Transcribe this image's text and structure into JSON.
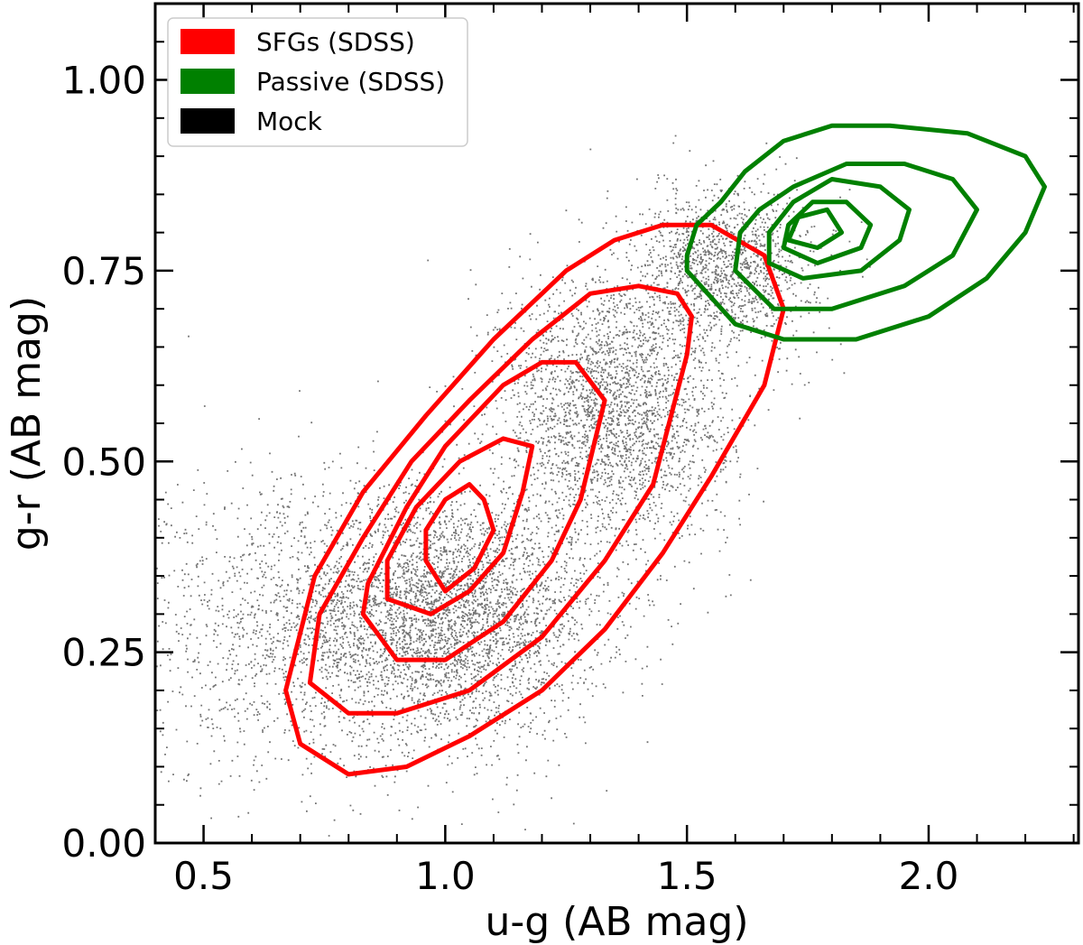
{
  "chart_data": {
    "type": "scatter",
    "xlabel": "u-g (AB mag)",
    "ylabel": "g-r (AB mag)",
    "xlim": [
      0.4,
      2.31
    ],
    "ylim": [
      0.0,
      1.1
    ],
    "x_ticks": [
      {
        "value": 0.5,
        "label": "0.5"
      },
      {
        "value": 1.0,
        "label": "1.0"
      },
      {
        "value": 1.5,
        "label": "1.5"
      },
      {
        "value": 2.0,
        "label": "2.0"
      }
    ],
    "x_minor_step": 0.1,
    "y_ticks": [
      {
        "value": 0.0,
        "label": "0.00"
      },
      {
        "value": 0.25,
        "label": "0.25"
      },
      {
        "value": 0.5,
        "label": "0.50"
      },
      {
        "value": 0.75,
        "label": "0.75"
      },
      {
        "value": 1.0,
        "label": "1.00"
      }
    ],
    "y_minor_step": 0.05,
    "grid": false,
    "legend": {
      "placement": "top-left",
      "entries": [
        {
          "label": "SFGs (SDSS)",
          "color": "#ff0000"
        },
        {
          "label": "Passive (SDSS)",
          "color": "#008000"
        },
        {
          "label": "Mock",
          "color": "#000000"
        }
      ]
    },
    "series": [
      {
        "name": "Mock",
        "kind": "scatter-density",
        "color": "#000000",
        "clusters": [
          {
            "center": [
              1.0,
              0.3
            ],
            "spread": [
              0.16,
              0.08
            ],
            "weight": 0.4
          },
          {
            "center": [
              1.35,
              0.57
            ],
            "spread": [
              0.12,
              0.09
            ],
            "weight": 0.3
          },
          {
            "center": [
              1.58,
              0.76
            ],
            "spread": [
              0.09,
              0.05
            ],
            "weight": 0.15
          },
          {
            "center": [
              0.7,
              0.28
            ],
            "spread": [
              0.2,
              0.1
            ],
            "weight": 0.15
          }
        ]
      },
      {
        "name": "SFGs (SDSS)",
        "kind": "contours",
        "color": "#ff0000",
        "contours": [
          [
            [
              0.8,
              0.09
            ],
            [
              0.92,
              0.1
            ],
            [
              1.05,
              0.14
            ],
            [
              1.2,
              0.2
            ],
            [
              1.33,
              0.28
            ],
            [
              1.45,
              0.38
            ],
            [
              1.55,
              0.48
            ],
            [
              1.66,
              0.6
            ],
            [
              1.7,
              0.7
            ],
            [
              1.66,
              0.77
            ],
            [
              1.55,
              0.81
            ],
            [
              1.45,
              0.81
            ],
            [
              1.35,
              0.79
            ],
            [
              1.25,
              0.75
            ],
            [
              1.1,
              0.66
            ],
            [
              0.96,
              0.56
            ],
            [
              0.83,
              0.46
            ],
            [
              0.73,
              0.35
            ],
            [
              0.67,
              0.2
            ],
            [
              0.7,
              0.13
            ],
            [
              0.8,
              0.09
            ]
          ],
          [
            [
              0.8,
              0.17
            ],
            [
              0.9,
              0.17
            ],
            [
              1.05,
              0.2
            ],
            [
              1.2,
              0.27
            ],
            [
              1.33,
              0.37
            ],
            [
              1.43,
              0.47
            ],
            [
              1.5,
              0.64
            ],
            [
              1.51,
              0.69
            ],
            [
              1.48,
              0.72
            ],
            [
              1.4,
              0.73
            ],
            [
              1.3,
              0.72
            ],
            [
              1.18,
              0.66
            ],
            [
              1.05,
              0.58
            ],
            [
              0.93,
              0.5
            ],
            [
              0.83,
              0.4
            ],
            [
              0.74,
              0.3
            ],
            [
              0.72,
              0.21
            ],
            [
              0.8,
              0.17
            ]
          ],
          [
            [
              0.9,
              0.24
            ],
            [
              1.0,
              0.24
            ],
            [
              1.12,
              0.29
            ],
            [
              1.22,
              0.37
            ],
            [
              1.28,
              0.45
            ],
            [
              1.33,
              0.58
            ],
            [
              1.27,
              0.63
            ],
            [
              1.2,
              0.63
            ],
            [
              1.12,
              0.6
            ],
            [
              1.0,
              0.52
            ],
            [
              0.92,
              0.44
            ],
            [
              0.84,
              0.34
            ],
            [
              0.83,
              0.3
            ],
            [
              0.9,
              0.24
            ]
          ],
          [
            [
              0.97,
              0.3
            ],
            [
              1.05,
              0.33
            ],
            [
              1.12,
              0.38
            ],
            [
              1.16,
              0.46
            ],
            [
              1.18,
              0.52
            ],
            [
              1.12,
              0.53
            ],
            [
              1.03,
              0.5
            ],
            [
              0.94,
              0.44
            ],
            [
              0.88,
              0.37
            ],
            [
              0.88,
              0.32
            ],
            [
              0.97,
              0.3
            ]
          ],
          [
            [
              1.0,
              0.33
            ],
            [
              1.06,
              0.36
            ],
            [
              1.1,
              0.41
            ],
            [
              1.08,
              0.45
            ],
            [
              1.05,
              0.47
            ],
            [
              1.0,
              0.45
            ],
            [
              0.96,
              0.41
            ],
            [
              0.96,
              0.37
            ],
            [
              1.0,
              0.33
            ]
          ]
        ]
      },
      {
        "name": "Passive (SDSS)",
        "kind": "contours",
        "color": "#008000",
        "contours": [
          [
            [
              1.5,
              0.75
            ],
            [
              1.6,
              0.68
            ],
            [
              1.7,
              0.66
            ],
            [
              1.85,
              0.66
            ],
            [
              2.0,
              0.69
            ],
            [
              2.12,
              0.74
            ],
            [
              2.2,
              0.8
            ],
            [
              2.24,
              0.86
            ],
            [
              2.2,
              0.9
            ],
            [
              2.08,
              0.93
            ],
            [
              1.92,
              0.94
            ],
            [
              1.8,
              0.94
            ],
            [
              1.7,
              0.92
            ],
            [
              1.62,
              0.88
            ],
            [
              1.57,
              0.84
            ],
            [
              1.52,
              0.81
            ],
            [
              1.5,
              0.77
            ],
            [
              1.5,
              0.75
            ]
          ],
          [
            [
              1.6,
              0.75
            ],
            [
              1.68,
              0.7
            ],
            [
              1.8,
              0.7
            ],
            [
              1.95,
              0.73
            ],
            [
              2.05,
              0.77
            ],
            [
              2.1,
              0.83
            ],
            [
              2.05,
              0.87
            ],
            [
              1.95,
              0.89
            ],
            [
              1.83,
              0.89
            ],
            [
              1.72,
              0.86
            ],
            [
              1.65,
              0.83
            ],
            [
              1.61,
              0.8
            ],
            [
              1.6,
              0.75
            ]
          ],
          [
            [
              1.67,
              0.76
            ],
            [
              1.74,
              0.74
            ],
            [
              1.86,
              0.75
            ],
            [
              1.94,
              0.79
            ],
            [
              1.96,
              0.83
            ],
            [
              1.9,
              0.86
            ],
            [
              1.8,
              0.87
            ],
            [
              1.72,
              0.84
            ],
            [
              1.67,
              0.8
            ],
            [
              1.67,
              0.76
            ]
          ],
          [
            [
              1.7,
              0.78
            ],
            [
              1.77,
              0.76
            ],
            [
              1.86,
              0.78
            ],
            [
              1.88,
              0.81
            ],
            [
              1.83,
              0.84
            ],
            [
              1.76,
              0.84
            ],
            [
              1.71,
              0.81
            ],
            [
              1.7,
              0.78
            ]
          ],
          [
            [
              1.71,
              0.79
            ],
            [
              1.77,
              0.78
            ],
            [
              1.82,
              0.8
            ],
            [
              1.79,
              0.83
            ],
            [
              1.73,
              0.82
            ],
            [
              1.71,
              0.79
            ]
          ]
        ]
      }
    ]
  }
}
